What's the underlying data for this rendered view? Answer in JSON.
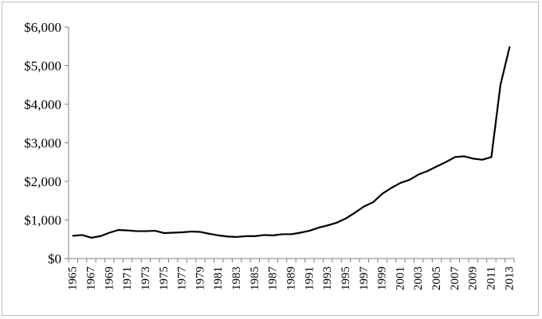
{
  "chart_data": {
    "type": "line",
    "title": "",
    "xlabel": "",
    "ylabel": "",
    "x": [
      1965,
      1966,
      1967,
      1968,
      1969,
      1970,
      1971,
      1972,
      1973,
      1974,
      1975,
      1976,
      1977,
      1978,
      1979,
      1980,
      1981,
      1982,
      1983,
      1984,
      1985,
      1986,
      1987,
      1988,
      1989,
      1990,
      1991,
      1992,
      1993,
      1994,
      1995,
      1996,
      1997,
      1998,
      1999,
      2000,
      2001,
      2002,
      2003,
      2004,
      2005,
      2006,
      2007,
      2008,
      2009,
      2010,
      2011,
      2012,
      2013
    ],
    "series": [
      {
        "color": "#000000",
        "values": [
          590,
          610,
          540,
          580,
          670,
          740,
          730,
          710,
          710,
          720,
          660,
          670,
          680,
          700,
          690,
          640,
          600,
          570,
          560,
          580,
          580,
          610,
          600,
          630,
          630,
          670,
          720,
          800,
          860,
          930,
          1040,
          1190,
          1350,
          1460,
          1680,
          1830,
          1960,
          2040,
          2180,
          2270,
          2390,
          2500,
          2630,
          2650,
          2590,
          2560,
          2630,
          4500,
          5480
        ]
      }
    ],
    "ylim": [
      0,
      6000
    ],
    "yticks": [
      0,
      1000,
      2000,
      3000,
      4000,
      5000,
      6000
    ],
    "ytick_labels": [
      "$0",
      "$1,000",
      "$2,000",
      "$3,000",
      "$4,000",
      "$5,000",
      "$6,000"
    ],
    "xtick_labels": [
      "1965",
      "1967",
      "1969",
      "1971",
      "1973",
      "1975",
      "1977",
      "1979",
      "1981",
      "1983",
      "1985",
      "1987",
      "1989",
      "1991",
      "1993",
      "1995",
      "1997",
      "1999",
      "2001",
      "2003",
      "2005",
      "2007",
      "2009",
      "2011",
      "2013"
    ],
    "grid": false,
    "legend": "none",
    "axis_color": "#808080",
    "line_color": "#000000",
    "frame_color": "#bfbfbf"
  }
}
